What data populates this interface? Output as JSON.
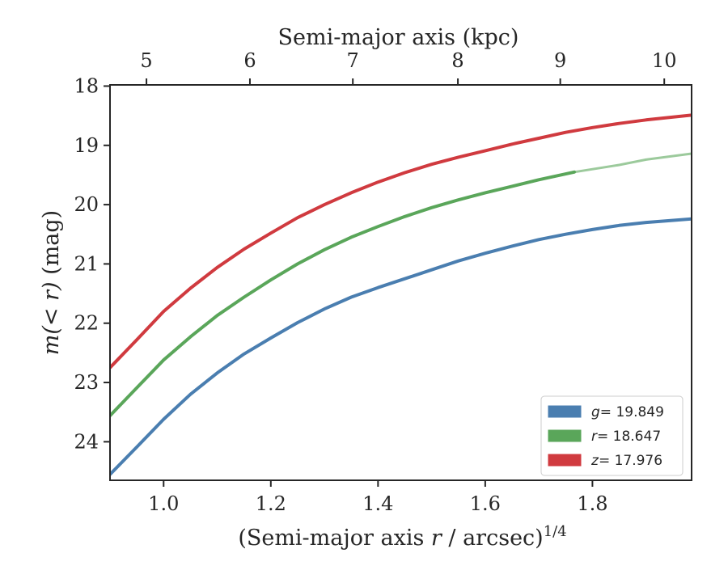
{
  "chart_data": {
    "type": "line",
    "title": "",
    "xlabel": "(Semi-major axis r / arcsec)^1/4",
    "xlabel_parts": {
      "main": "(Semi-major axis ",
      "var": "r",
      "rest": " / arcsec)",
      "sup": "1/4"
    },
    "ylabel": "m(< r) (mag)",
    "ylabel_parts": {
      "main": "m(< r)",
      "unit": " (mag)"
    },
    "top_xlabel": "Semi-major axis (kpc)",
    "xlim": [
      0.9,
      1.985
    ],
    "ylim": [
      24.65,
      17.98
    ],
    "y_inverted": true,
    "xticks": [
      1.0,
      1.2,
      1.4,
      1.6,
      1.8
    ],
    "xtick_labels": [
      "1.0",
      "1.2",
      "1.4",
      "1.6",
      "1.8"
    ],
    "yticks": [
      18,
      19,
      20,
      21,
      22,
      23,
      24
    ],
    "ytick_labels": [
      "18",
      "19",
      "20",
      "21",
      "22",
      "23",
      "24"
    ],
    "top_ticks_kpc": [
      5,
      6,
      7,
      8,
      9,
      10
    ],
    "top_tick_labels": [
      "5",
      "6",
      "7",
      "8",
      "9",
      "10"
    ],
    "top_tick_positions_x": [
      0.968,
      1.161,
      1.353,
      1.549,
      1.74,
      1.934
    ],
    "grid": false,
    "legend_position": "bottom-right",
    "series": [
      {
        "name": "g = 19.849",
        "label_var": "g",
        "label_value": "= 19.849",
        "color": "#4a7eb0",
        "x": [
          0.9,
          0.95,
          1.0,
          1.05,
          1.1,
          1.15,
          1.2,
          1.25,
          1.3,
          1.35,
          1.4,
          1.45,
          1.5,
          1.55,
          1.6,
          1.65,
          1.7,
          1.75,
          1.8,
          1.85,
          1.9,
          1.985
        ],
        "y": [
          24.55,
          24.09,
          23.62,
          23.2,
          22.84,
          22.52,
          22.25,
          21.99,
          21.76,
          21.56,
          21.4,
          21.25,
          21.1,
          20.95,
          20.82,
          20.7,
          20.59,
          20.5,
          20.42,
          20.35,
          20.3,
          20.24
        ]
      },
      {
        "name": "r = 18.647",
        "label_var": "r",
        "label_value": "= 18.647",
        "color": "#5aa65a",
        "x": [
          0.9,
          0.95,
          1.0,
          1.05,
          1.1,
          1.15,
          1.2,
          1.25,
          1.3,
          1.35,
          1.4,
          1.45,
          1.5,
          1.55,
          1.6,
          1.65,
          1.7,
          1.766,
          1.85,
          1.9,
          1.985
        ],
        "y": [
          23.56,
          23.09,
          22.62,
          22.23,
          21.87,
          21.56,
          21.27,
          21.0,
          20.76,
          20.55,
          20.37,
          20.2,
          20.05,
          19.92,
          19.8,
          19.69,
          19.58,
          19.45,
          19.33,
          19.24,
          19.14
        ],
        "faded_from_x": 1.766
      },
      {
        "name": "z = 17.976",
        "label_var": "z",
        "label_value": "= 17.976",
        "color": "#d03a3f",
        "x": [
          0.9,
          0.95,
          1.0,
          1.05,
          1.1,
          1.15,
          1.2,
          1.25,
          1.3,
          1.35,
          1.4,
          1.45,
          1.5,
          1.55,
          1.6,
          1.65,
          1.7,
          1.75,
          1.8,
          1.85,
          1.9,
          1.985
        ],
        "y": [
          22.75,
          22.28,
          21.8,
          21.41,
          21.06,
          20.75,
          20.48,
          20.22,
          20.0,
          19.8,
          19.62,
          19.46,
          19.32,
          19.2,
          19.09,
          18.98,
          18.88,
          18.78,
          18.7,
          18.63,
          18.57,
          18.49
        ]
      }
    ]
  }
}
